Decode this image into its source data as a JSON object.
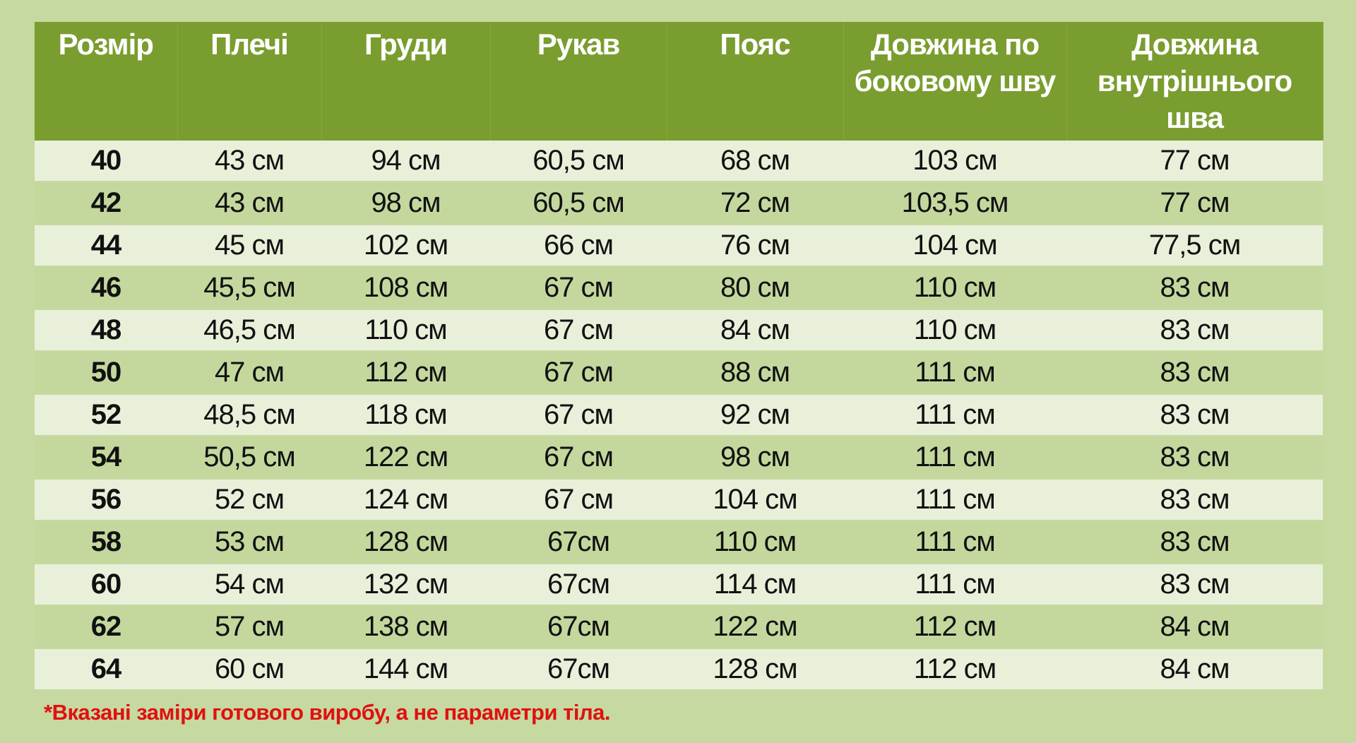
{
  "colors": {
    "header": "#7a9d2f",
    "background": "#c6d9a0",
    "row_light": "#e8f0da",
    "row_dark": "#c4d89e",
    "note": "#e01010"
  },
  "table": {
    "headers": [
      "Розмір",
      "Плечі",
      "Груди",
      "Рукав",
      "Пояс",
      "Довжина по боковому шву",
      "Довжина внутрішнього шва"
    ],
    "rows": [
      [
        "40",
        "43 см",
        "94 см",
        "60,5 см",
        "68 см",
        "103 см",
        "77 см"
      ],
      [
        "42",
        "43 см",
        "98 см",
        "60,5 см",
        "72 см",
        "103,5 см",
        "77 см"
      ],
      [
        "44",
        "45 см",
        "102 см",
        "66 см",
        "76 см",
        "104 см",
        "77,5 см"
      ],
      [
        "46",
        "45,5 см",
        "108 см",
        "67 см",
        "80 см",
        "110 см",
        "83 см"
      ],
      [
        "48",
        "46,5 см",
        "110 см",
        "67 см",
        "84 см",
        "110 см",
        "83 см"
      ],
      [
        "50",
        "47 см",
        "112 см",
        "67 см",
        "88 см",
        "111 см",
        "83 см"
      ],
      [
        "52",
        "48,5 см",
        "118 см",
        "67 см",
        "92 см",
        "111 см",
        "83 см"
      ],
      [
        "54",
        "50,5 см",
        "122 см",
        "67 см",
        "98 см",
        "111 см",
        "83 см"
      ],
      [
        "56",
        "52 см",
        "124 см",
        "67 см",
        "104 см",
        "111 см",
        "83 см"
      ],
      [
        "58",
        "53 см",
        "128 см",
        "67см",
        "110 см",
        "111 см",
        "83 см"
      ],
      [
        "60",
        "54 см",
        "132 см",
        "67см",
        "114 см",
        "111 см",
        "83 см"
      ],
      [
        "62",
        "57 см",
        "138 см",
        "67см",
        "122 см",
        "112 см",
        "84 см"
      ],
      [
        "64",
        "60 см",
        "144 см",
        "67см",
        "128 см",
        "112 см",
        "84 см"
      ]
    ]
  },
  "note": "*Вказані заміри готового виробу, а не параметри тіла."
}
